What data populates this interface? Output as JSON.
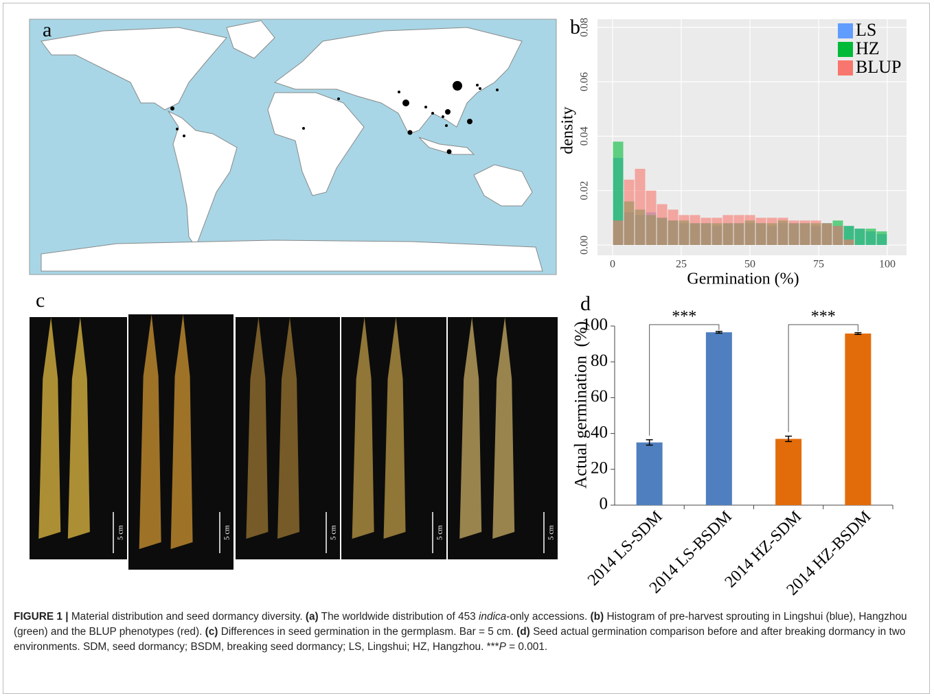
{
  "panel_labels": [
    "a",
    "b",
    "c",
    "d"
  ],
  "photo_scale_labels": [
    "5 cm",
    "5 cm",
    "5 cm",
    "5 cm",
    "5 cm"
  ],
  "chart_data": [
    {
      "type": "histogram",
      "ylabel": "density",
      "xlabel": "Germination (%)",
      "xlim": [
        -5.5,
        107
      ],
      "ylim": [
        -0.0038,
        0.083
      ],
      "xticks": [
        0,
        25,
        50,
        75,
        100
      ],
      "yticks": [
        {
          "value": 0,
          "label": "0.00"
        },
        {
          "value": 0.02,
          "label": "0.02"
        },
        {
          "value": 0.04,
          "label": "0.04"
        },
        {
          "value": 0.06,
          "label": "0.06"
        },
        {
          "value": 0.08,
          "label": "0.08"
        }
      ],
      "grid": true,
      "legend": "top-right",
      "bins": [
        0,
        4,
        8,
        12,
        16,
        20,
        24,
        28,
        32,
        36,
        40,
        44,
        48,
        52,
        56,
        60,
        64,
        68,
        72,
        76,
        80,
        84,
        88,
        92,
        96,
        100
      ],
      "series": [
        {
          "name": "LS",
          "color": "#619CFF",
          "values": [
            0.032,
            0.012,
            0.011,
            0.012,
            0.01,
            0.009,
            0.008,
            0.008,
            0.008,
            0.007,
            0.008,
            0.008,
            0.008,
            0.008,
            0.007,
            0.008,
            0.008,
            0.008,
            0.007,
            0.008,
            0.007,
            0.007,
            0.006,
            0.005,
            0.004
          ]
        },
        {
          "name": "HZ",
          "color": "#00BA38",
          "values": [
            0.038,
            0.016,
            0.013,
            0.011,
            0.01,
            0.009,
            0.009,
            0.008,
            0.008,
            0.008,
            0.008,
            0.008,
            0.009,
            0.008,
            0.008,
            0.009,
            0.008,
            0.008,
            0.008,
            0.008,
            0.009,
            0.007,
            0.006,
            0.006,
            0.005
          ]
        },
        {
          "name": "BLUP",
          "color": "#F8766D",
          "values": [
            0.009,
            0.024,
            0.028,
            0.02,
            0.015,
            0.013,
            0.011,
            0.011,
            0.01,
            0.01,
            0.011,
            0.011,
            0.011,
            0.01,
            0.01,
            0.01,
            0.009,
            0.009,
            0.009,
            0.008,
            0.007,
            0.002,
            0,
            0,
            0
          ]
        }
      ]
    },
    {
      "type": "bar",
      "ylabel": "Actual germination  (%)",
      "categories": [
        "2014 LS-SDM",
        "2014 LS-BSDM",
        "2014 HZ-SDM",
        "2014 HZ-BSDM"
      ],
      "values": [
        35,
        96.5,
        37,
        95.8
      ],
      "errors": [
        1.5,
        0.5,
        1.5,
        0.5
      ],
      "colors": [
        "#4f7fbf",
        "#4f7fbf",
        "#e36c0a",
        "#e36c0a"
      ],
      "ylim": [
        0,
        100
      ],
      "yticks": [
        0,
        20,
        40,
        60,
        80,
        100
      ],
      "annotations": [
        "***",
        "***"
      ]
    }
  ],
  "caption": [
    {
      "text": "FIGURE 1 | ",
      "style": "bold"
    },
    {
      "text": "Material distribution and seed dormancy diversity. ",
      "style": "normal"
    },
    {
      "text": "(a)",
      "style": "bold"
    },
    {
      "text": " The worldwide distribution of 453 ",
      "style": "normal"
    },
    {
      "text": "indica",
      "style": "italic"
    },
    {
      "text": "-only accessions. ",
      "style": "normal"
    },
    {
      "text": "(b)",
      "style": "bold"
    },
    {
      "text": " Histogram of pre-harvest sprouting in Lingshui (blue), Hangzhou (green) and the BLUP phenotypes (red). ",
      "style": "normal"
    },
    {
      "text": "(c)",
      "style": "bold"
    },
    {
      "text": " Differences in seed germination in the germplasm. Bar = 5 cm. ",
      "style": "normal"
    },
    {
      "text": "(d)",
      "style": "bold"
    },
    {
      "text": " Seed actual germination comparison before and after breaking dormancy in two environments. SDM, seed dormancy; BSDM, breaking seed dormancy; LS, Lingshui; HZ, Hangzhou. ",
      "style": "normal"
    },
    {
      "text": "***",
      "style": "normal"
    },
    {
      "text": "P",
      "style": "italic"
    },
    {
      "text": " = 0.001.",
      "style": "normal"
    }
  ]
}
